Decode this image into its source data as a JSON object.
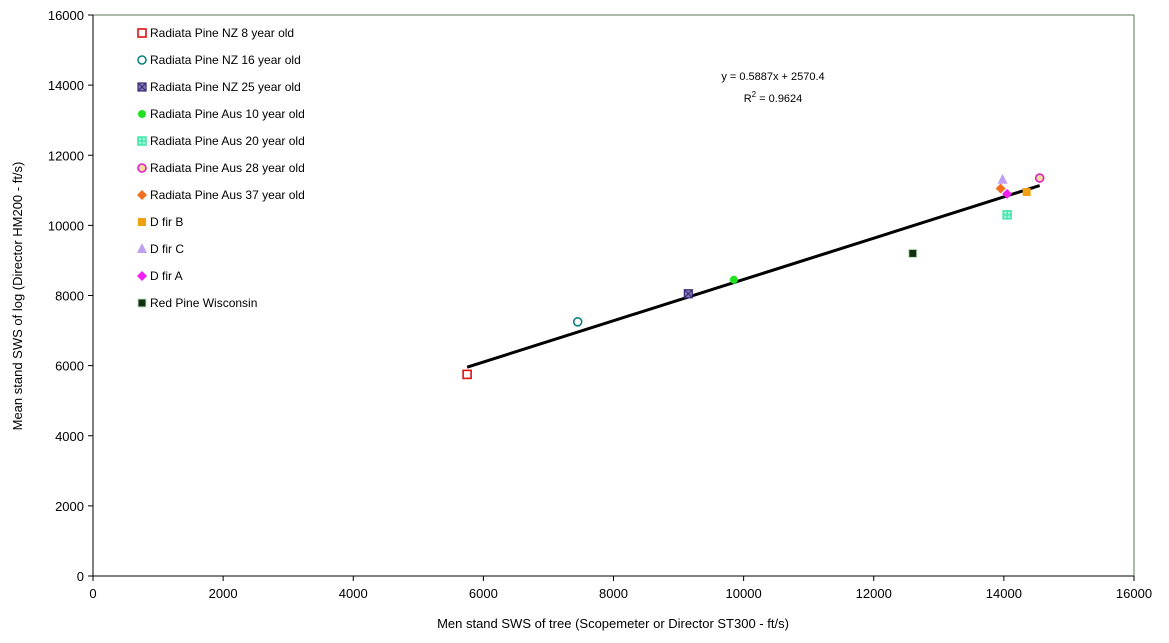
{
  "chart_data": {
    "type": "scatter",
    "title": "",
    "xlabel": "Men stand SWS of tree (Scopemeter or Director ST300 - ft/s)",
    "ylabel": "Mean stand SWS of log (Director HM200 - ft/s)",
    "xlim": [
      0,
      16000
    ],
    "ylim": [
      0,
      16000
    ],
    "xticks": [
      0,
      2000,
      4000,
      6000,
      8000,
      10000,
      12000,
      14000,
      16000
    ],
    "yticks": [
      0,
      2000,
      4000,
      6000,
      8000,
      10000,
      12000,
      14000,
      16000
    ],
    "grid": false,
    "legend_position": "top-left",
    "plot_border_color": "#5a7a5a",
    "series": [
      {
        "name": "Radiata Pine NZ 8 year old",
        "marker": "square-open",
        "color": "#e01010",
        "points": [
          [
            5750,
            5750
          ]
        ]
      },
      {
        "name": "Radiata Pine NZ 16 year old",
        "marker": "circle-open",
        "color": "#108080",
        "points": [
          [
            7450,
            7250
          ]
        ]
      },
      {
        "name": "Radiata Pine NZ 25 year old",
        "marker": "square-x",
        "color": "#3a2a7a",
        "points": [
          [
            9150,
            8050
          ]
        ]
      },
      {
        "name": "Radiata Pine Aus 10 year old",
        "marker": "circle",
        "color": "#20e020",
        "points": [
          [
            9850,
            8450
          ]
        ]
      },
      {
        "name": "Radiata Pine Aus 20 year old",
        "marker": "square-cross",
        "color": "#30e8a0",
        "points": [
          [
            14050,
            10300
          ]
        ]
      },
      {
        "name": "Radiata Pine Aus 28 year old",
        "marker": "circle-open-filled",
        "color": "#e020c0",
        "points": [
          [
            14550,
            11350
          ]
        ]
      },
      {
        "name": "Radiata Pine Aus 37 year old",
        "marker": "diamond",
        "color": "#f07020",
        "points": [
          [
            13950,
            11050
          ]
        ]
      },
      {
        "name": "D fir B",
        "marker": "square",
        "color": "#f0a010",
        "points": [
          [
            14350,
            10950
          ]
        ]
      },
      {
        "name": "D fir C",
        "marker": "triangle",
        "color": "#c0a0f0",
        "points": [
          [
            13980,
            11300
          ]
        ]
      },
      {
        "name": "D fir A",
        "marker": "diamond",
        "color": "#f020f0",
        "points": [
          [
            14050,
            10900
          ]
        ]
      },
      {
        "name": "Red Pine Wisconsin",
        "marker": "square-dark",
        "color": "#103010",
        "points": [
          [
            12600,
            9200
          ]
        ]
      }
    ],
    "trendline": {
      "slope": 0.5887,
      "intercept": 2570.4,
      "x_range": [
        5750,
        14550
      ],
      "equation": "y = 0.5887x + 2570.4",
      "r2_prefix": "R",
      "r2_sup": "2",
      "r2_value": " = 0.9624"
    }
  }
}
